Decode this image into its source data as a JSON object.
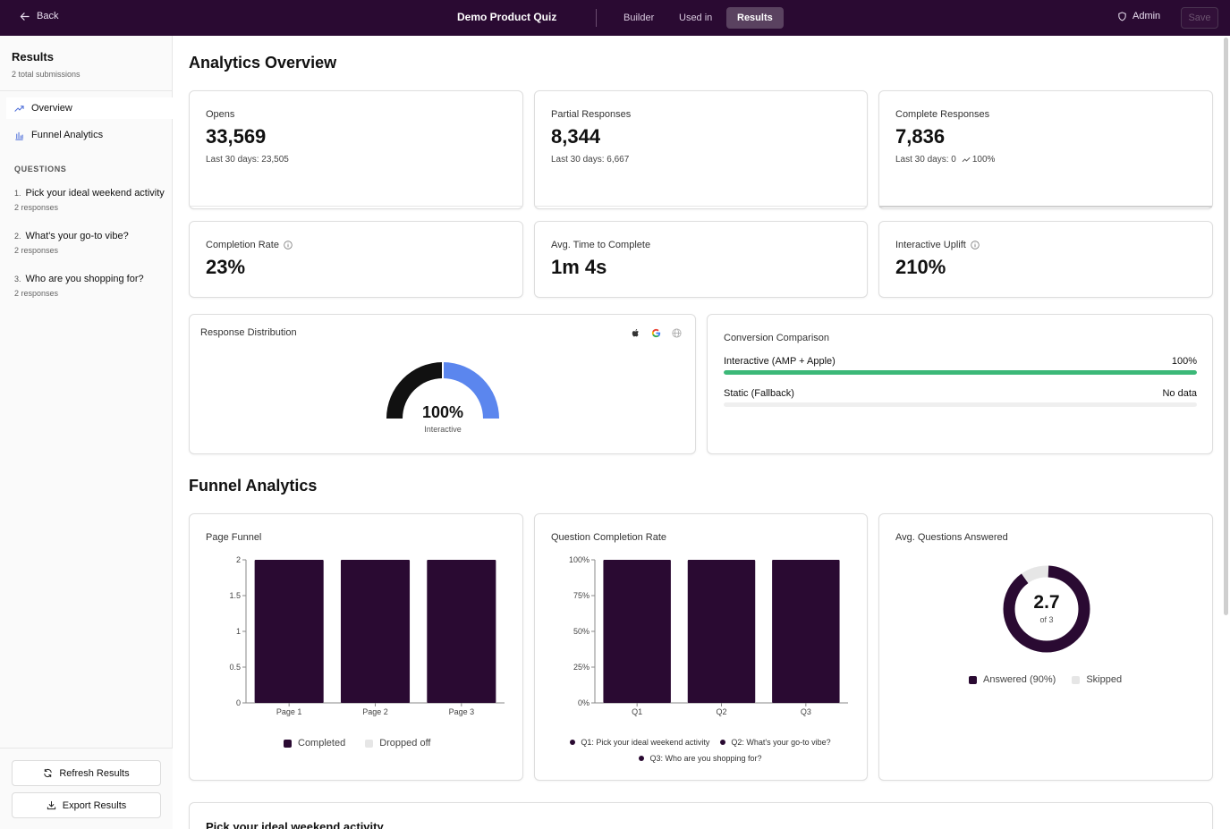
{
  "header": {
    "back_label": "Back",
    "title": "Demo Product Quiz",
    "tabs": [
      "Builder",
      "Used in",
      "Results"
    ],
    "active_tab": "Results",
    "admin_label": "Admin",
    "save_label": "Save"
  },
  "sidebar": {
    "title": "Results",
    "subtitle": "2 total submissions",
    "nav": [
      {
        "label": "Overview",
        "icon": "trend-icon"
      },
      {
        "label": "Funnel Analytics",
        "icon": "bar-chart-icon"
      }
    ],
    "questions_heading": "QUESTIONS",
    "questions": [
      {
        "num": "1.",
        "title": "Pick your ideal weekend activity",
        "responses": "2 responses"
      },
      {
        "num": "2.",
        "title": "What's your go-to vibe?",
        "responses": "2 responses"
      },
      {
        "num": "3.",
        "title": "Who are you shopping for?",
        "responses": "2 responses"
      }
    ],
    "refresh_label": "Refresh Results",
    "export_label": "Export Results"
  },
  "overview": {
    "title": "Analytics Overview",
    "stats": [
      {
        "label": "Opens",
        "value": "33,569",
        "sub": "Last 30 days: 23,505"
      },
      {
        "label": "Partial Responses",
        "value": "8,344",
        "sub": "Last 30 days: 6,667"
      },
      {
        "label": "Complete Responses",
        "value": "7,836",
        "sub": "Last 30 days: 0",
        "trend": "100%"
      },
      {
        "label": "Completion Rate",
        "value": "23%"
      },
      {
        "label": "Avg. Time to Complete",
        "value": "1m 4s"
      },
      {
        "label": "Interactive Uplift",
        "value": "210%"
      }
    ],
    "distribution": {
      "title": "Response Distribution",
      "value": "100%",
      "caption": "Interactive",
      "icons": [
        "apple-icon",
        "google-icon",
        "globe-icon"
      ],
      "segments": [
        {
          "name": "Apple",
          "color": "#111111",
          "share": 0.5
        },
        {
          "name": "Google",
          "color": "#5b86ee",
          "share": 0.5
        }
      ]
    },
    "conversion": {
      "title": "Conversion Comparison",
      "rows": [
        {
          "label": "Interactive (AMP + Apple)",
          "value_text": "100%",
          "fill": 1.0
        },
        {
          "label": "Static (Fallback)",
          "value_text": "No data",
          "fill": 0
        }
      ]
    }
  },
  "funnel": {
    "title": "Funnel Analytics",
    "legend_completed": "Completed",
    "legend_dropped": "Dropped off",
    "legend_answered": "Answered (90%)",
    "legend_skipped": "Skipped",
    "avg": {
      "title": "Avg. Questions Answered",
      "value": "2.7",
      "caption": "of 3",
      "answered_share": 0.9
    },
    "next_section_title": "Pick your ideal weekend activity"
  },
  "colors": {
    "primary": "#2a0a32",
    "green": "#3cb878",
    "blue": "#5b86ee",
    "skipped": "#e6e6e6"
  },
  "chart_data": [
    {
      "type": "bar",
      "title": "Page Funnel",
      "categories": [
        "Page 1",
        "Page 2",
        "Page 3"
      ],
      "series": [
        {
          "name": "Completed",
          "values": [
            2,
            2,
            2
          ]
        },
        {
          "name": "Dropped off",
          "values": [
            0,
            0,
            0
          ]
        }
      ],
      "yticks": [
        "0",
        "0.5",
        "1",
        "1.5",
        "2"
      ],
      "ylim": [
        0,
        2
      ]
    },
    {
      "type": "bar",
      "title": "Question Completion Rate",
      "categories": [
        "Q1",
        "Q2",
        "Q3"
      ],
      "values": [
        100,
        100,
        100
      ],
      "yticks": [
        "0%",
        "25%",
        "50%",
        "75%",
        "100%"
      ],
      "ylim": [
        0,
        100
      ],
      "legend": [
        "Q1: Pick your ideal weekend activity",
        "Q2: What's your go-to vibe?",
        "Q3: Who are you shopping for?"
      ]
    }
  ]
}
